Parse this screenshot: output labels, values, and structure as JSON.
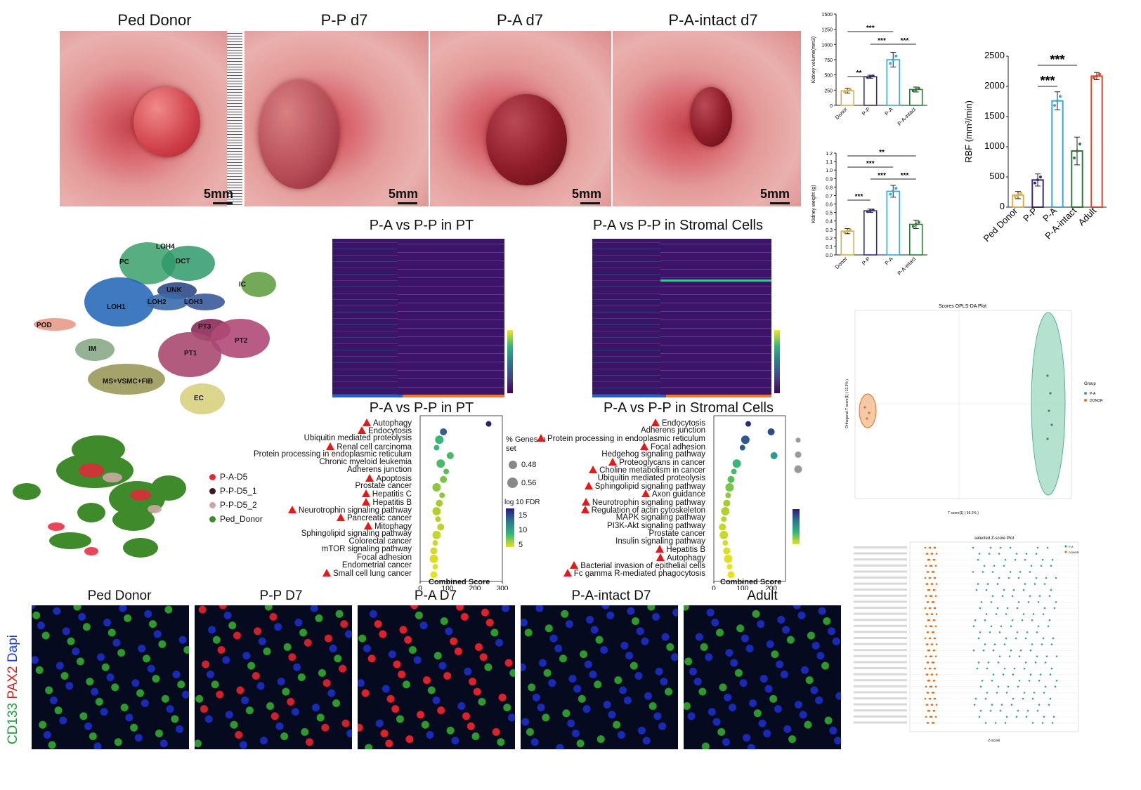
{
  "photos": {
    "titles": [
      "Ped Donor",
      "P-P d7",
      "P-A d7",
      "P-A-intact d7"
    ],
    "scale_label": "5mm"
  },
  "chart_data": [
    {
      "type": "bar",
      "categories": [
        "Donor",
        "P-P",
        "P-A",
        "P-A-intact"
      ],
      "values": [
        240,
        470,
        750,
        260
      ],
      "errors": [
        40,
        25,
        120,
        40
      ],
      "xlabel": "",
      "ylabel": "Kidney volume(mm3)",
      "ylim": [
        0,
        1500
      ],
      "yticks": [
        0,
        250,
        500,
        750,
        1000,
        1250,
        1500
      ],
      "colors": [
        "#d8b04a",
        "#3a2a7a",
        "#3aa6e0",
        "#2d7a3a"
      ],
      "significance": [
        {
          "from": "Donor",
          "to": "P-P",
          "label": "**"
        },
        {
          "from": "P-P",
          "to": "P-A",
          "label": "***"
        },
        {
          "from": "P-A",
          "to": "P-A-intact",
          "label": "***"
        },
        {
          "from": "Donor",
          "to": "P-A",
          "label": "***"
        }
      ]
    },
    {
      "type": "bar",
      "categories": [
        "Donor",
        "P-P",
        "P-A",
        "P-A-intact"
      ],
      "values": [
        0.28,
        0.52,
        0.75,
        0.36
      ],
      "errors": [
        0.03,
        0.02,
        0.07,
        0.05
      ],
      "xlabel": "",
      "ylabel": "Kidney weight (g)",
      "ylim": [
        0,
        1.2
      ],
      "yticks": [
        "0.0",
        "0.1",
        "0.2",
        "0.3",
        "0.4",
        "0.5",
        "0.6",
        "0.7",
        "0.8",
        "0.9",
        "1.0",
        "1.1",
        "1.2"
      ],
      "colors": [
        "#d8b04a",
        "#3a2a7a",
        "#3aa6e0",
        "#2d7a3a"
      ],
      "significance": [
        {
          "from": "Donor",
          "to": "P-P",
          "label": "***"
        },
        {
          "from": "P-P",
          "to": "P-A",
          "label": "***"
        },
        {
          "from": "P-A",
          "to": "P-A-intact",
          "label": "***"
        },
        {
          "from": "Donor",
          "to": "P-A",
          "label": "***"
        },
        {
          "from": "Donor",
          "to": "P-A-intact",
          "label": "**"
        }
      ]
    },
    {
      "type": "bar",
      "categories": [
        "Ped Donor",
        "P-P",
        "P-A",
        "P-A-intact",
        "Adult"
      ],
      "values": [
        200,
        450,
        1760,
        930,
        2170
      ],
      "errors": [
        60,
        100,
        150,
        230,
        60
      ],
      "xlabel": "",
      "ylabel": "RBF (mm³/min)",
      "ylim": [
        0,
        2500
      ],
      "yticks": [
        0,
        500,
        1000,
        1500,
        2000,
        2500
      ],
      "colors": [
        "#d8b04a",
        "#3a2a7a",
        "#3aa6e0",
        "#2d7a3a",
        "#e0452a"
      ],
      "significance": [
        {
          "from": "P-P",
          "to": "P-A",
          "label": "***"
        },
        {
          "from": "P-P",
          "to": "P-A-intact",
          "label": "***"
        }
      ]
    },
    {
      "type": "bar",
      "title": "P-A vs P-P in PT",
      "categories": [
        "Autophagy",
        "Endocytosis",
        "Ubiquitin mediated proteolysis",
        "Renal cell carcinoma",
        "Protein processing in endoplasmic reticulum",
        "Chronic myeloid leukemia",
        "Adherens junction",
        "Apoptosis",
        "Prostate cancer",
        "Hepatitis C",
        "Hepatitis B",
        "Neurotrophin signaling pathway",
        "Pancreatic cancer",
        "Mitophagy",
        "Sphingolipid signaling pathway",
        "Colorectal cancer",
        "mTOR signaling pathway",
        "Focal adhesion",
        "Endometrial cancer",
        "Small cell lung cancer"
      ],
      "flagged": [
        true,
        true,
        false,
        true,
        false,
        false,
        false,
        true,
        false,
        true,
        true,
        true,
        true,
        true,
        false,
        false,
        false,
        false,
        false,
        true
      ],
      "values": [
        250,
        85,
        70,
        60,
        110,
        75,
        95,
        85,
        60,
        80,
        70,
        60,
        65,
        75,
        60,
        55,
        50,
        50,
        55,
        50
      ],
      "xlabel": "Combined Score",
      "ylabel": "",
      "xlim": [
        0,
        300
      ],
      "xticks": [
        0,
        100,
        200,
        300
      ],
      "legend_title": "% Genes in set",
      "size_legend": [
        "0.48",
        "0.56"
      ],
      "color_legend_title": "log 10 FDR",
      "color_ticks": [
        "15",
        "10",
        "5"
      ]
    },
    {
      "type": "bar",
      "title": "P-A vs P-P in Stromal Cells",
      "categories": [
        "Endocytosis",
        "Adherens junction",
        "Protein processing in endoplasmic reticulum",
        "Focal adhesion",
        "Hedgehog signaling pathway",
        "Proteoglycans in cancer",
        "Choline metabolism in cancer",
        "Ubiquitin mediated proteolysis",
        "Sphingolipid signaling pathway",
        "Axon guidance",
        "Neurotrophin signaling pathway",
        "Regulation of actin cytoskeleton",
        "MAPK signaling pathway",
        "PI3K-Akt signaling pathway",
        "Prostate cancer",
        "Insulin signaling pathway",
        "Hepatitis B",
        "Autophagy",
        "Bacterial invasion of epithelial cells",
        "Fc gamma R-mediated phagocytosis"
      ],
      "flagged": [
        true,
        false,
        true,
        true,
        false,
        true,
        true,
        false,
        true,
        true,
        true,
        true,
        false,
        false,
        false,
        false,
        true,
        true,
        true,
        true
      ],
      "values": [
        120,
        200,
        110,
        100,
        210,
        80,
        70,
        60,
        55,
        50,
        45,
        40,
        35,
        30,
        35,
        40,
        45,
        50,
        55,
        60
      ],
      "xlabel": "Combined Score",
      "ylabel": "",
      "xlim": [
        0,
        250
      ],
      "xticks": [
        0,
        100,
        200
      ],
      "color_legend_title": "",
      "color_ticks": []
    }
  ],
  "umap": {
    "clusters": [
      "LOH4",
      "PC",
      "DCT",
      "IC",
      "UNK",
      "LOH1",
      "LOH2",
      "LOH3",
      "POD",
      "PT3",
      "PT2",
      "PT1",
      "IM",
      "MS+VSMC+FIB",
      "EC"
    ],
    "legend": [
      {
        "label": "P-A-D5",
        "color": "#e8263a"
      },
      {
        "label": "P-P-D5_1",
        "color": "#3a1a20"
      },
      {
        "label": "P-P-D5_2",
        "color": "#c9a8a4"
      },
      {
        "label": "Ped_Donor",
        "color": "#3f8a2a"
      }
    ]
  },
  "heatmaps": {
    "titles": [
      "P-A vs P-P in PT",
      "P-A vs P-P in Stromal Cells"
    ]
  },
  "if_panels": {
    "titles": [
      "Ped Donor",
      "P-P D7",
      "P-A D7",
      "P-A-intact D7",
      "Adult"
    ],
    "side_label_parts": [
      "CD133",
      "PAX2",
      "Dapi"
    ],
    "side_colors": [
      "#1aa13a",
      "#e21a1a",
      "#1a44c8"
    ]
  },
  "oplsda": {
    "title": "Scores OPLS-DA Plot",
    "xlabel": "T score[1] ( 39.1% )",
    "ylabel": "Orthogonal T score[1] ( 13.3% )",
    "legend_title": "Group",
    "groups": [
      "P-A",
      "DONOR"
    ],
    "group_colors": [
      "#3aa38a",
      "#e07020"
    ]
  },
  "zscore": {
    "title": "selected Z-score Plot",
    "xlabel": "Z-score",
    "groups": [
      "P-A",
      "DONOR"
    ],
    "group_colors": [
      "#3aa38a",
      "#e07020"
    ]
  }
}
